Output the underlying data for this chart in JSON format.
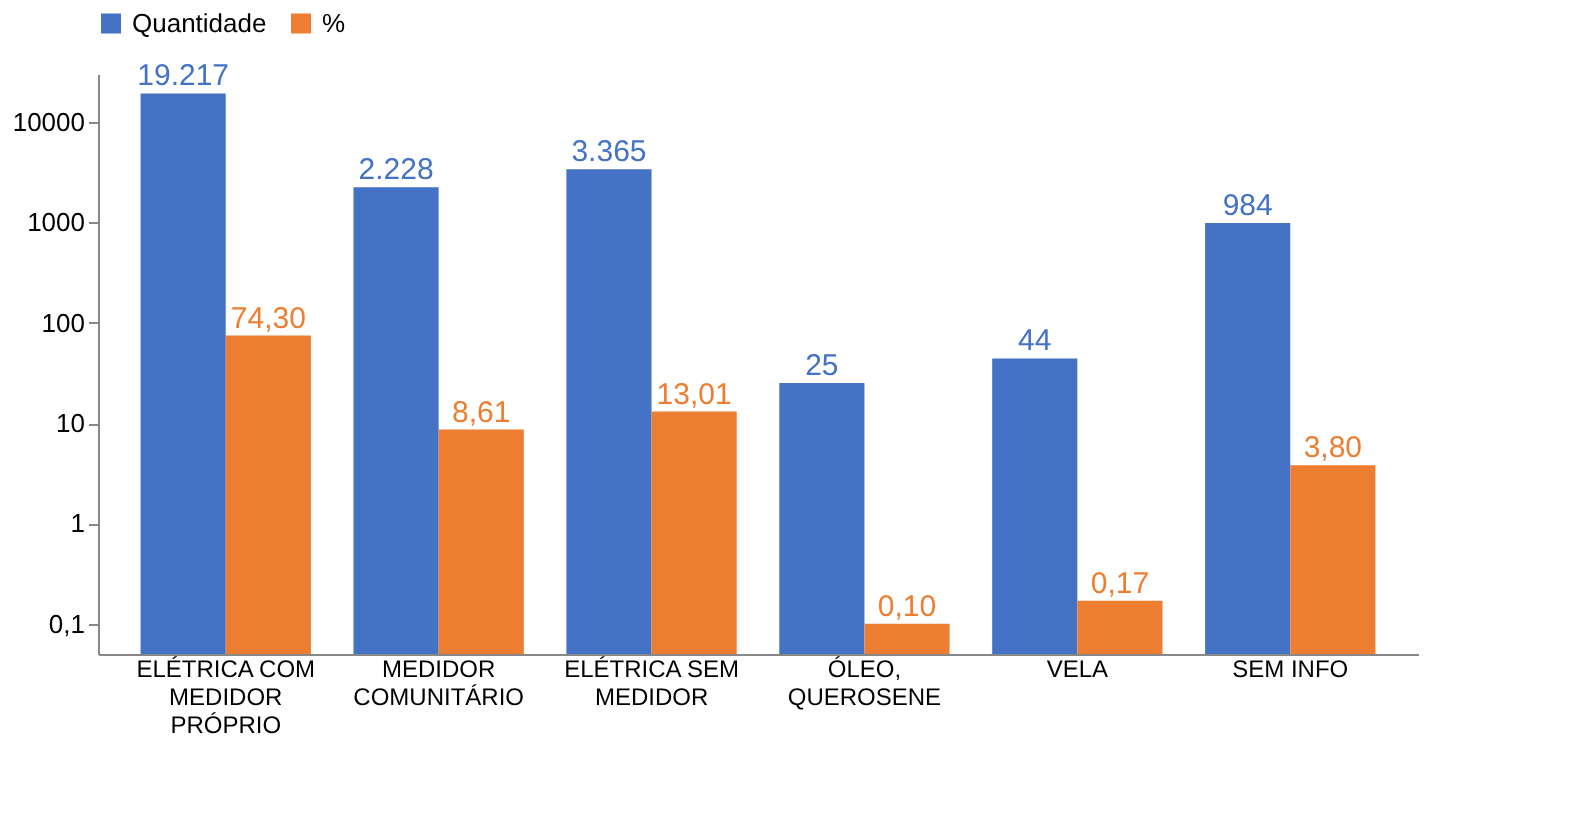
{
  "chart_data": {
    "type": "bar",
    "log": true,
    "legend": "top",
    "grid": false,
    "categories": [
      "ELÉTRICA COM\nMEDIDOR\nPRÓPRIO",
      "MEDIDOR\nCOMUNITÁRIO",
      "ELÉTRICA SEM\nMEDIDOR",
      "ÓLEO,\nQUEROSENE",
      "VELA",
      "SEM INFO"
    ],
    "ylim": [
      0.05,
      30000
    ],
    "yticks": [
      {
        "value": 0.1,
        "label": "0,1"
      },
      1,
      10,
      100,
      1000,
      10000
    ],
    "series": [
      {
        "name": "Quantidade",
        "color": "#4472c4",
        "values": [
          19217,
          2228,
          3365,
          25,
          44,
          984
        ],
        "value_labels": [
          "19.217",
          "2.228",
          "3.365",
          "25",
          "44",
          "984"
        ]
      },
      {
        "name": "%",
        "color": "#ed7d31",
        "values": [
          74.3,
          8.61,
          13.01,
          0.1,
          0.17,
          3.8
        ],
        "value_labels": [
          "74,30",
          "8,61",
          "13,01",
          "0,10",
          "0,17",
          "3,80"
        ]
      }
    ]
  }
}
